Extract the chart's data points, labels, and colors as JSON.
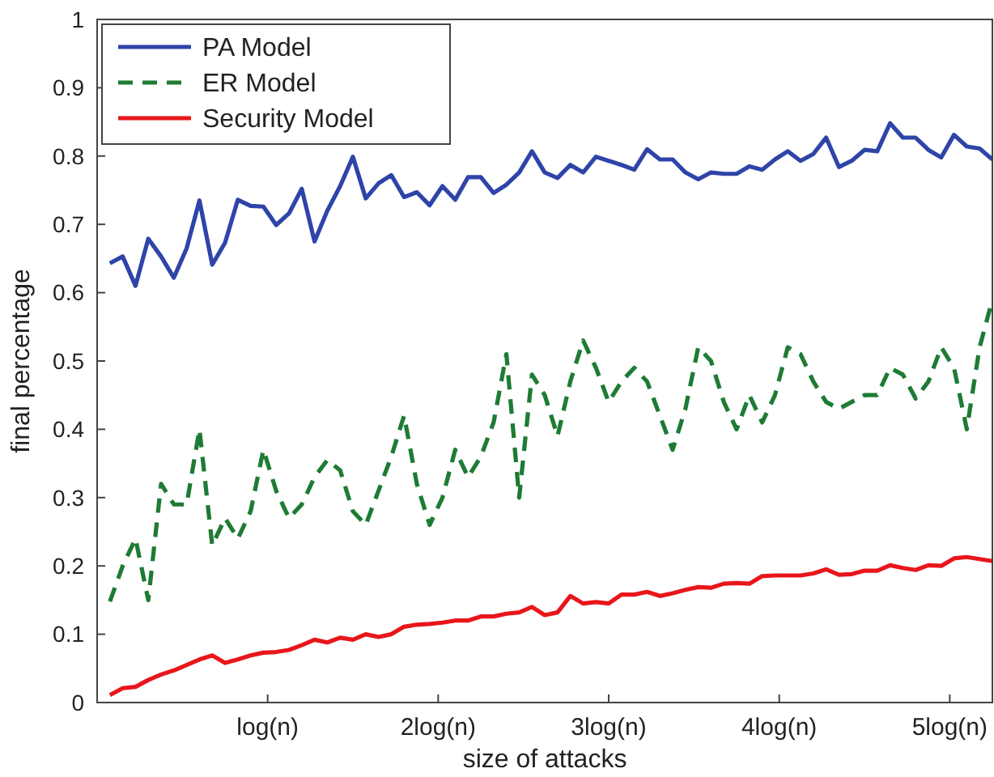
{
  "chart_data": {
    "type": "line",
    "xlabel": "size of attacks",
    "ylabel": "final percentage",
    "x": [
      0.075,
      0.15,
      0.225,
      0.3,
      0.375,
      0.45,
      0.525,
      0.6,
      0.675,
      0.75,
      0.825,
      0.9,
      0.975,
      1.05,
      1.125,
      1.2,
      1.275,
      1.35,
      1.425,
      1.5,
      1.575,
      1.65,
      1.725,
      1.8,
      1.875,
      1.95,
      2.025,
      2.1,
      2.175,
      2.25,
      2.325,
      2.4,
      2.475,
      2.55,
      2.625,
      2.7,
      2.775,
      2.85,
      2.925,
      3,
      3.075,
      3.15,
      3.225,
      3.3,
      3.375,
      3.45,
      3.525,
      3.6,
      3.675,
      3.75,
      3.825,
      3.9,
      3.975,
      4.05,
      4.125,
      4.2,
      4.275,
      4.35,
      4.425,
      4.5,
      4.575,
      4.65,
      4.725,
      4.8,
      4.875,
      4.95,
      5.025,
      5.1,
      5.175,
      5.25
    ],
    "series": [
      {
        "name": "PA Model",
        "color": "#2e44a8",
        "line_style": "solid",
        "values": [
          0.643,
          0.653,
          0.61,
          0.679,
          0.653,
          0.622,
          0.665,
          0.735,
          0.641,
          0.673,
          0.736,
          0.727,
          0.726,
          0.699,
          0.716,
          0.752,
          0.675,
          0.72,
          0.756,
          0.799,
          0.738,
          0.76,
          0.772,
          0.74,
          0.747,
          0.728,
          0.756,
          0.736,
          0.769,
          0.769,
          0.746,
          0.758,
          0.776,
          0.807,
          0.776,
          0.768,
          0.787,
          0.776,
          0.799,
          0.793,
          0.787,
          0.78,
          0.81,
          0.795,
          0.795,
          0.776,
          0.766,
          0.776,
          0.774,
          0.774,
          0.785,
          0.78,
          0.795,
          0.807,
          0.793,
          0.803,
          0.827,
          0.784,
          0.793,
          0.809,
          0.807,
          0.848,
          0.827,
          0.827,
          0.809,
          0.798,
          0.831,
          0.814,
          0.811,
          0.795
        ]
      },
      {
        "name": "ER Model",
        "color": "#1e7b34",
        "line_style": "dashed",
        "values": [
          0.148,
          0.2,
          0.24,
          0.15,
          0.32,
          0.29,
          0.29,
          0.4,
          0.23,
          0.27,
          0.24,
          0.28,
          0.37,
          0.31,
          0.27,
          0.29,
          0.33,
          0.355,
          0.34,
          0.28,
          0.26,
          0.31,
          0.36,
          0.42,
          0.32,
          0.26,
          0.3,
          0.37,
          0.33,
          0.36,
          0.41,
          0.51,
          0.3,
          0.48,
          0.45,
          0.39,
          0.47,
          0.53,
          0.49,
          0.44,
          0.47,
          0.49,
          0.47,
          0.42,
          0.37,
          0.43,
          0.52,
          0.5,
          0.44,
          0.4,
          0.45,
          0.41,
          0.45,
          0.52,
          0.51,
          0.47,
          0.44,
          0.43,
          0.44,
          0.45,
          0.45,
          0.49,
          0.48,
          0.445,
          0.47,
          0.52,
          0.49,
          0.4,
          0.52,
          0.59
        ]
      },
      {
        "name": "Security Model",
        "color": "#e8161b",
        "line_style": "solid",
        "values": [
          0.011,
          0.021,
          0.023,
          0.033,
          0.041,
          0.047,
          0.055,
          0.063,
          0.069,
          0.058,
          0.063,
          0.069,
          0.073,
          0.074,
          0.077,
          0.084,
          0.092,
          0.088,
          0.095,
          0.092,
          0.1,
          0.096,
          0.1,
          0.111,
          0.114,
          0.115,
          0.117,
          0.12,
          0.12,
          0.126,
          0.126,
          0.13,
          0.132,
          0.14,
          0.128,
          0.132,
          0.156,
          0.145,
          0.147,
          0.145,
          0.158,
          0.158,
          0.162,
          0.156,
          0.16,
          0.165,
          0.169,
          0.168,
          0.174,
          0.175,
          0.174,
          0.185,
          0.186,
          0.186,
          0.186,
          0.189,
          0.195,
          0.187,
          0.188,
          0.193,
          0.193,
          0.201,
          0.197,
          0.194,
          0.201,
          0.2,
          0.211,
          0.213,
          0.21,
          0.207
        ]
      }
    ],
    "xlim": [
      0,
      5.25
    ],
    "xticks": [
      {
        "value": 1,
        "label": "log(n)"
      },
      {
        "value": 2,
        "label": "2log(n)"
      },
      {
        "value": 3,
        "label": "3log(n)"
      },
      {
        "value": 4,
        "label": "4log(n)"
      },
      {
        "value": 5,
        "label": "5log(n)"
      }
    ],
    "ylim": [
      0,
      1
    ],
    "yticks": [
      0,
      0.1,
      0.2,
      0.3,
      0.4,
      0.5,
      0.6,
      0.7,
      0.8,
      0.9,
      1
    ],
    "legend": "top left",
    "grid": false,
    "marker": "none"
  }
}
